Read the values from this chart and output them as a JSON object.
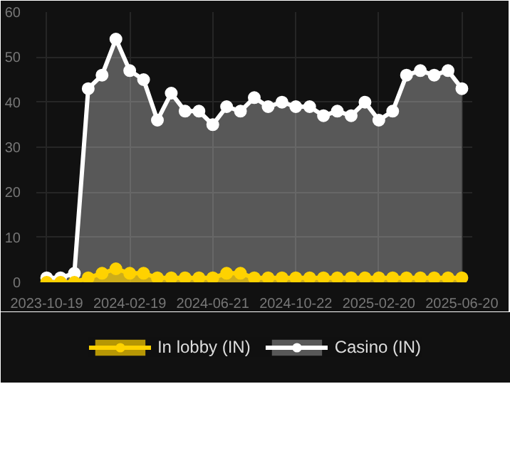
{
  "chart_data": {
    "type": "area",
    "categories": [
      "2023-10-19",
      null,
      null,
      null,
      null,
      null,
      "2024-02-19",
      null,
      null,
      null,
      null,
      null,
      "2024-06-21",
      null,
      null,
      null,
      null,
      null,
      "2024-10-22",
      null,
      null,
      null,
      null,
      null,
      "2025-02-20",
      null,
      null,
      null,
      null,
      null,
      "2025-06-20"
    ],
    "series": [
      {
        "name": "In lobby (IN)",
        "color": "#ffd200",
        "values": [
          0,
          0,
          0,
          1,
          2,
          3,
          2,
          2,
          1,
          1,
          1,
          1,
          1,
          2,
          2,
          1,
          1,
          1,
          1,
          1,
          1,
          1,
          1,
          1,
          1,
          1,
          1,
          1,
          1,
          1,
          1
        ]
      },
      {
        "name": "Casino (IN)",
        "color": "#ffffff",
        "values": [
          1,
          1,
          2,
          43,
          46,
          54,
          47,
          45,
          36,
          42,
          38,
          38,
          35,
          39,
          38,
          41,
          39,
          40,
          39,
          39,
          37,
          38,
          37,
          40,
          36,
          38,
          46,
          47,
          46,
          47,
          43
        ]
      }
    ],
    "ylim": [
      0,
      60
    ],
    "yticks": [
      0,
      10,
      20,
      30,
      40,
      50,
      60
    ],
    "grid": true,
    "legend": "bottom",
    "marker": "circle"
  }
}
